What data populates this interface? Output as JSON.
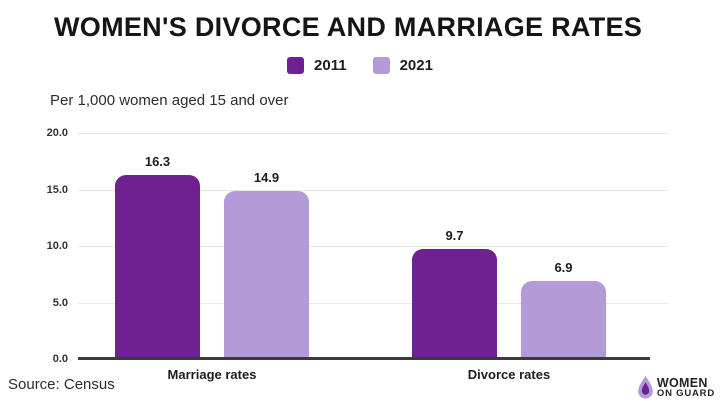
{
  "title": "WOMEN'S DIVORCE AND MARRIAGE RATES",
  "subtitle": "Per 1,000 women aged 15 and over",
  "source": "Source: Census",
  "legend": [
    {
      "label": "2011",
      "color": "#6f2191"
    },
    {
      "label": "2021",
      "color": "#b49bd8"
    }
  ],
  "logo": {
    "line1": "WOMEN",
    "line2": "ON GUARD"
  },
  "colors": {
    "series_2011": "#6f2191",
    "series_2021": "#b49bd8",
    "title_text": "#151515",
    "gridline": "#e7e7e7",
    "axis_line": "#3b3b3b",
    "background": "#ffffff"
  },
  "chart_data": {
    "type": "bar",
    "title": "WOMEN'S DIVORCE AND MARRIAGE RATES",
    "subtitle": "Per 1,000 women aged 15 and over",
    "categories": [
      "Marriage rates",
      "Divorce rates"
    ],
    "series": [
      {
        "name": "2011",
        "color": "#6f2191",
        "values": [
          16.3,
          9.7
        ]
      },
      {
        "name": "2021",
        "color": "#b49bd8",
        "values": [
          14.9,
          6.9
        ]
      }
    ],
    "ylim": [
      0,
      20
    ],
    "ytick_labels": [
      "20.0",
      "15.0",
      "10.0",
      "5.0",
      "0.0"
    ],
    "grid": true,
    "legend_position": "top",
    "value_labels": true
  }
}
